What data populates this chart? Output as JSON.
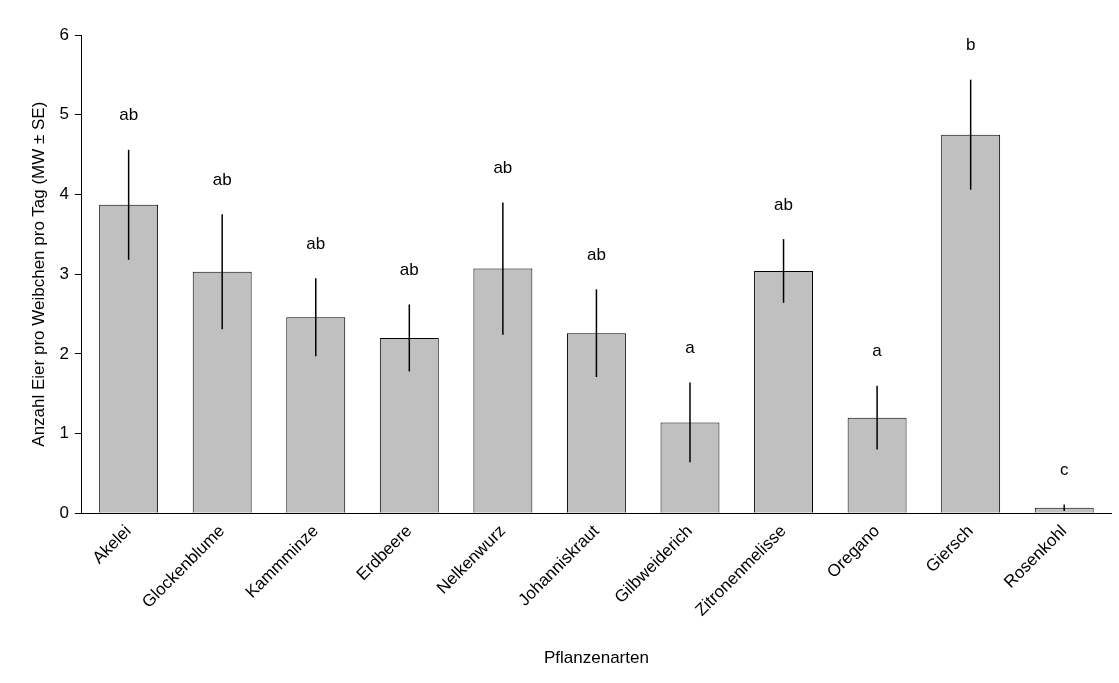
{
  "chart_data": {
    "type": "bar",
    "xlabel": "Pflanzenarten",
    "ylabel": "Anzahl Eier pro Weibchen pro Tag (MW ± SE)",
    "categories": [
      "Akelei",
      "Glockenblume",
      "Kammminze",
      "Erdbeere",
      "Nelkenwurz",
      "Johanniskraut",
      "Gilbweiderich",
      "Zitronenmelisse",
      "Oregano",
      "Giersch",
      "Rosenkohl"
    ],
    "values": [
      3.87,
      3.03,
      2.46,
      2.2,
      3.07,
      2.26,
      1.14,
      3.04,
      1.2,
      4.75,
      0.07
    ],
    "errors": [
      0.69,
      0.72,
      0.49,
      0.42,
      0.83,
      0.55,
      0.5,
      0.4,
      0.4,
      0.69,
      0.04
    ],
    "color": "#c0c0c0",
    "ylim": [
      0,
      6
    ],
    "yticks": [
      0,
      1,
      2,
      3,
      4,
      5,
      6
    ],
    "grid": false,
    "legend": false,
    "annotations": [
      "ab",
      "ab",
      "ab",
      "ab",
      "ab",
      "ab",
      "a",
      "ab",
      "a",
      "b",
      "c"
    ]
  }
}
